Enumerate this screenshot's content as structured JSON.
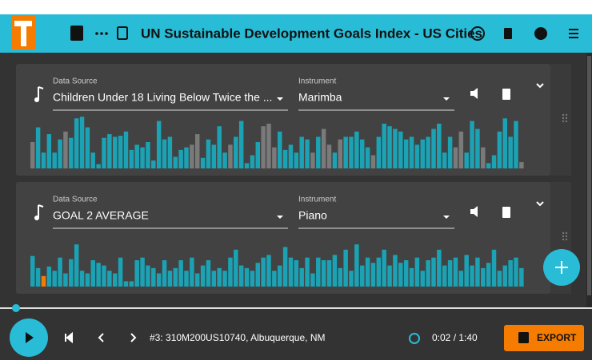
{
  "header": {
    "title": "UN Sustainable Development Goals Index - US Cities"
  },
  "tracks": [
    {
      "source_label": "Data Source",
      "source": "Children Under 18 Living Below Twice the ...",
      "instrument_label": "Instrument",
      "instrument": "Marimba",
      "ylim": [
        0,
        100
      ],
      "color": "#1ba3b5",
      "muted_color": "#7a7a7a",
      "muted_indices": [
        0,
        6,
        29,
        30,
        36,
        42,
        43,
        44,
        51,
        53,
        54,
        56,
        62,
        77,
        78,
        82,
        89
      ],
      "values": [
        50,
        78,
        30,
        65,
        30,
        55,
        70,
        58,
        95,
        98,
        78,
        30,
        8,
        58,
        65,
        60,
        62,
        70,
        35,
        45,
        40,
        50,
        15,
        90,
        55,
        60,
        22,
        35,
        40,
        45,
        65,
        20,
        55,
        45,
        80,
        30,
        45,
        60,
        90,
        10,
        25,
        50,
        80,
        85,
        40,
        70,
        35,
        45,
        30,
        60,
        55,
        30,
        60,
        75,
        45,
        30,
        55,
        60,
        60,
        70,
        55,
        40,
        25,
        60,
        85,
        80,
        75,
        70,
        55,
        60,
        45,
        55,
        60,
        75,
        85,
        30,
        60,
        40,
        70,
        30,
        90,
        75,
        40,
        10,
        25,
        70,
        95,
        60,
        90,
        12
      ]
    },
    {
      "source_label": "Data Source",
      "source": "GOAL 2 AVERAGE",
      "instrument_label": "Instrument",
      "instrument": "Piano",
      "ylim": [
        0,
        100
      ],
      "color": "#1ba3b5",
      "current_color": "#f57c00",
      "current_index": 2,
      "values": [
        58,
        35,
        20,
        38,
        30,
        55,
        25,
        52,
        80,
        30,
        25,
        50,
        45,
        40,
        30,
        25,
        55,
        10,
        10,
        50,
        55,
        40,
        35,
        25,
        50,
        30,
        35,
        50,
        30,
        55,
        25,
        40,
        50,
        30,
        35,
        30,
        55,
        70,
        40,
        35,
        30,
        45,
        55,
        60,
        30,
        40,
        75,
        55,
        50,
        35,
        55,
        25,
        55,
        50,
        50,
        60,
        35,
        70,
        30,
        80,
        40,
        55,
        45,
        55,
        70,
        40,
        60,
        45,
        50,
        35,
        55,
        30,
        50,
        55,
        70,
        40,
        50,
        55,
        30,
        60,
        40,
        55,
        35,
        45,
        70,
        30,
        40,
        50,
        55,
        35
      ]
    }
  ],
  "player": {
    "status": "#3: 310M200US10740, Albuquerque, NM",
    "time": "0:02 / 1:40",
    "export": "EXPORT"
  }
}
